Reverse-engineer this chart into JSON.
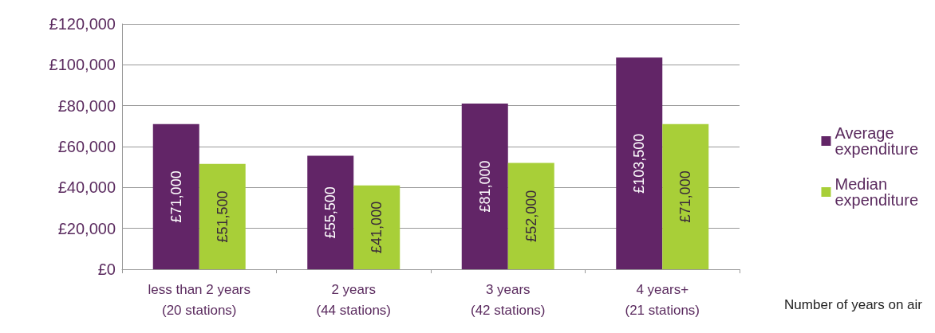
{
  "chart_data": {
    "type": "bar",
    "xlabel": "Number of years on air",
    "categories": [
      "less than 2 years\n(20 stations)",
      "2 years\n(44 stations)",
      "3 years\n(42 stations)",
      "4 years+\n(21 stations)"
    ],
    "series": [
      {
        "name": "Average expenditure",
        "color": "#622567",
        "values": [
          71000,
          55500,
          81000,
          103500
        ],
        "value_labels": [
          "£71,000",
          "£55,500",
          "£81,000",
          "£103,500"
        ]
      },
      {
        "name": "Median expenditure",
        "color": "#a8cf38",
        "values": [
          51500,
          41000,
          52000,
          71000
        ],
        "value_labels": [
          "£51,500",
          "£41,000",
          "£52,000",
          "£71,000"
        ]
      }
    ],
    "ylim": [
      0,
      120000
    ],
    "yticks": [
      {
        "value": 0,
        "label": "£0"
      },
      {
        "value": 20000,
        "label": "£20,000"
      },
      {
        "value": 40000,
        "label": "£40,000"
      },
      {
        "value": 60000,
        "label": "£60,000"
      },
      {
        "value": 80000,
        "label": "£80,000"
      },
      {
        "value": 100000,
        "label": "£100,000"
      },
      {
        "value": 120000,
        "label": "£120,000"
      }
    ],
    "grid": true,
    "legend": "right"
  }
}
